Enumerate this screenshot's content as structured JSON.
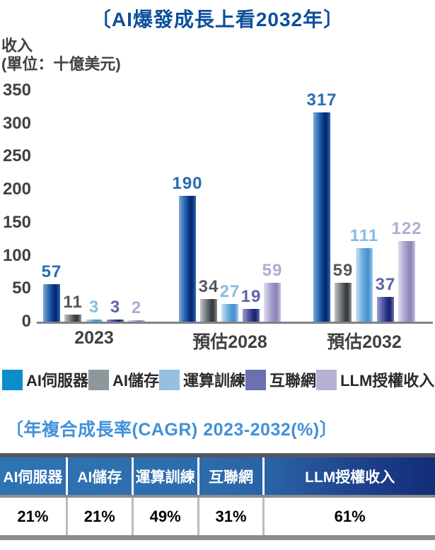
{
  "title": "〔AI爆發成長上看2032年〕",
  "colors": {
    "title": "#0b4f9c",
    "cagr_title": "#4191d9",
    "axis_text": "#414042",
    "axis_line": "#808285"
  },
  "chart_data": {
    "type": "bar",
    "title": "〔AI爆發成長上看2032年〕",
    "ylabel_line1": "收入",
    "ylabel_line2": "(單位：十億美元)",
    "ylim": [
      0,
      350
    ],
    "yticks": [
      0,
      50,
      100,
      150,
      200,
      250,
      300,
      350
    ],
    "grid": false,
    "legend_position": "bottom",
    "categories": [
      "2023",
      "預估2028",
      "預估2032"
    ],
    "series": [
      {
        "name": "AI伺服器",
        "values": [
          57,
          190,
          317
        ],
        "legend_color": "#0d8ccb",
        "label_color": "#2a6bb0",
        "bar_gradient": [
          "#7fa9d2",
          "#1e60ae",
          "#072a76",
          "#2f6cb0"
        ]
      },
      {
        "name": "AI儲存",
        "values": [
          11,
          34,
          59
        ],
        "legend_color": "#8e979e",
        "label_color": "#55565a",
        "bar_gradient": [
          "#c2c5c7",
          "#71767a",
          "#3a3e41",
          "#8f9497"
        ]
      },
      {
        "name": "運算訓練",
        "values": [
          3,
          27,
          111
        ],
        "legend_color": "#94c1e1",
        "label_color": "#85bce4",
        "bar_gradient": [
          "#cfe4f4",
          "#6db0de",
          "#4a94cf",
          "#a5cdeb"
        ]
      },
      {
        "name": "互聯網",
        "values": [
          3,
          19,
          37
        ],
        "legend_color": "#6b70af",
        "label_color": "#5d64a9",
        "bar_gradient": [
          "#9b9fcb",
          "#4a52a0",
          "#1f2772",
          "#6b71b2"
        ]
      },
      {
        "name": "LLM授權收入",
        "values": [
          2,
          59,
          122
        ],
        "legend_color": "#b6b2d6",
        "label_color": "#b1abd3",
        "bar_gradient": [
          "#e0ddee",
          "#aaa5cf",
          "#8f88bd",
          "#c9c5e1"
        ]
      }
    ]
  },
  "cagr": {
    "title": "〔年複合成長率(CAGR) 2023-2032(%)〕",
    "headers": [
      "AI伺服器",
      "AI儲存",
      "運算訓練",
      "互聯網",
      "LLM授權收入"
    ],
    "values": [
      "21%",
      "21%",
      "49%",
      "31%",
      "61%"
    ],
    "column_widths_pct": [
      15.1,
      15.1,
      15.1,
      15.1,
      39.6
    ]
  }
}
